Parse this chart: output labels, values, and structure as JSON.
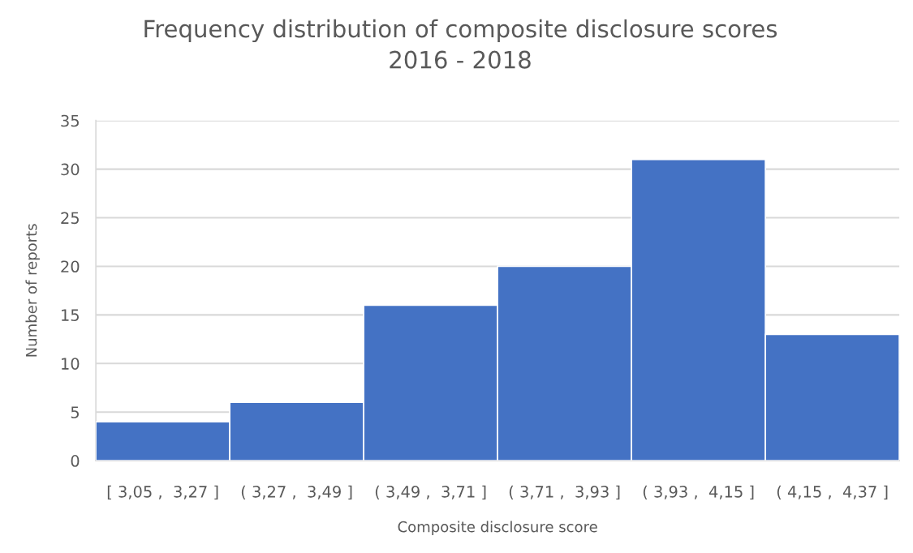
{
  "chart_data": {
    "type": "bar",
    "title": "Frequency distribution of composite disclosure scores\n2016 - 2018",
    "xlabel": "Composite disclosure score",
    "ylabel": "Number of reports",
    "categories": [
      "[ 3,05 ,  3,27 ]",
      "( 3,27 ,  3,49 ]",
      "( 3,49 ,  3,71 ]",
      "( 3,71 ,  3,93 ]",
      "( 3,93 ,  4,15 ]",
      "( 4,15 ,  4,37 ]"
    ],
    "values": [
      4,
      6,
      16,
      20,
      31,
      13
    ],
    "color": "#4472c4",
    "ylim": [
      0,
      35
    ],
    "yticks": [
      0,
      5,
      10,
      15,
      20,
      25,
      30,
      35
    ],
    "grid": "y",
    "legend": false
  }
}
